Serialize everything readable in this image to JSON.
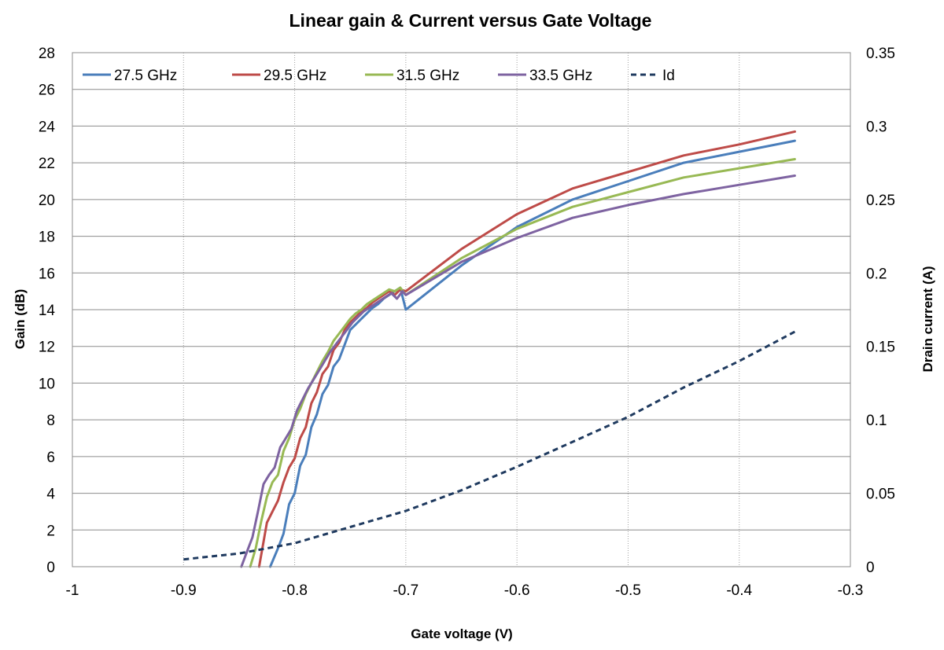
{
  "chart_data": {
    "type": "line",
    "title": "Linear gain & Current versus Gate Voltage",
    "xlabel": "Gate voltage (V)",
    "ylabel": "Gain (dB)",
    "y2label": "Drain current (A)",
    "xlim": [
      -1,
      -0.3
    ],
    "ylim": [
      0,
      28
    ],
    "y2lim": [
      0,
      0.35
    ],
    "x_ticks": [
      "-1",
      "-0.9",
      "-0.8",
      "-0.7",
      "-0.6",
      "-0.5",
      "-0.4",
      "-0.3"
    ],
    "y_ticks": [
      "0",
      "2",
      "4",
      "6",
      "8",
      "10",
      "12",
      "14",
      "16",
      "18",
      "20",
      "22",
      "24",
      "26",
      "28"
    ],
    "y2_ticks": [
      "0",
      "0.05",
      "0.1",
      "0.15",
      "0.2",
      "0.25",
      "0.3",
      "0.35"
    ],
    "grid": "horizontal solid, vertical dotted",
    "legend_position": "top-left",
    "series": [
      {
        "name": "27.5 GHz",
        "color": "#4a7ebb",
        "axis": "left",
        "dash": "solid",
        "x": [
          -0.822,
          -0.815,
          -0.81,
          -0.805,
          -0.8,
          -0.795,
          -0.79,
          -0.785,
          -0.78,
          -0.775,
          -0.77,
          -0.765,
          -0.76,
          -0.755,
          -0.75,
          -0.745,
          -0.74,
          -0.735,
          -0.73,
          -0.725,
          -0.72,
          -0.715,
          -0.71,
          -0.705,
          -0.7,
          -0.65,
          -0.6,
          -0.55,
          -0.5,
          -0.45,
          -0.4,
          -0.35
        ],
        "y": [
          0,
          1,
          1.8,
          3.4,
          4.0,
          5.5,
          6.1,
          7.6,
          8.3,
          9.4,
          9.9,
          10.9,
          11.3,
          12.1,
          12.9,
          13.2,
          13.5,
          13.8,
          14.1,
          14.3,
          14.6,
          14.8,
          15.0,
          15.2,
          14.0,
          16.4,
          18.5,
          20.0,
          21.0,
          22.0,
          22.6,
          23.2
        ]
      },
      {
        "name": "29.5 GHz",
        "color": "#be4b48",
        "axis": "left",
        "dash": "solid",
        "x": [
          -0.832,
          -0.825,
          -0.82,
          -0.815,
          -0.81,
          -0.805,
          -0.8,
          -0.795,
          -0.79,
          -0.785,
          -0.78,
          -0.775,
          -0.77,
          -0.765,
          -0.76,
          -0.755,
          -0.75,
          -0.745,
          -0.74,
          -0.735,
          -0.73,
          -0.725,
          -0.72,
          -0.715,
          -0.71,
          -0.705,
          -0.7,
          -0.65,
          -0.6,
          -0.55,
          -0.5,
          -0.45,
          -0.4,
          -0.35
        ],
        "y": [
          0,
          2.4,
          3.0,
          3.6,
          4.6,
          5.4,
          5.9,
          7.0,
          7.6,
          8.9,
          9.5,
          10.5,
          10.9,
          11.8,
          12.2,
          12.9,
          13.3,
          13.6,
          13.9,
          14.1,
          14.4,
          14.6,
          14.8,
          15.0,
          14.8,
          15.1,
          15.0,
          17.3,
          19.2,
          20.6,
          21.5,
          22.4,
          23.0,
          23.7
        ]
      },
      {
        "name": "31.5 GHz",
        "color": "#98b954",
        "axis": "left",
        "dash": "solid",
        "x": [
          -0.84,
          -0.835,
          -0.83,
          -0.825,
          -0.82,
          -0.815,
          -0.81,
          -0.805,
          -0.8,
          -0.795,
          -0.79,
          -0.785,
          -0.78,
          -0.775,
          -0.77,
          -0.765,
          -0.76,
          -0.755,
          -0.75,
          -0.745,
          -0.74,
          -0.735,
          -0.73,
          -0.725,
          -0.72,
          -0.715,
          -0.71,
          -0.705,
          -0.7,
          -0.65,
          -0.6,
          -0.55,
          -0.5,
          -0.45,
          -0.4,
          -0.35
        ],
        "y": [
          0,
          1.0,
          2.5,
          3.8,
          4.6,
          5.0,
          6.3,
          7.0,
          8.0,
          8.6,
          9.4,
          10.0,
          10.6,
          11.2,
          11.7,
          12.3,
          12.7,
          13.1,
          13.5,
          13.8,
          14.0,
          14.3,
          14.5,
          14.7,
          14.9,
          15.1,
          15.0,
          15.2,
          14.8,
          16.8,
          18.4,
          19.6,
          20.4,
          21.2,
          21.7,
          22.2
        ]
      },
      {
        "name": "33.5 GHz",
        "color": "#7e63a1",
        "axis": "left",
        "dash": "solid",
        "x": [
          -0.848,
          -0.843,
          -0.838,
          -0.833,
          -0.828,
          -0.823,
          -0.818,
          -0.813,
          -0.808,
          -0.803,
          -0.798,
          -0.793,
          -0.788,
          -0.783,
          -0.778,
          -0.773,
          -0.768,
          -0.763,
          -0.758,
          -0.753,
          -0.748,
          -0.743,
          -0.738,
          -0.733,
          -0.728,
          -0.723,
          -0.718,
          -0.713,
          -0.708,
          -0.703,
          -0.7,
          -0.65,
          -0.6,
          -0.55,
          -0.5,
          -0.45,
          -0.4,
          -0.35
        ],
        "y": [
          0,
          0.8,
          1.6,
          3.0,
          4.5,
          5.0,
          5.4,
          6.5,
          7.0,
          7.5,
          8.5,
          9.1,
          9.7,
          10.2,
          10.7,
          11.2,
          11.7,
          12.1,
          12.5,
          12.9,
          13.3,
          13.6,
          13.9,
          14.1,
          14.3,
          14.5,
          14.7,
          14.9,
          14.6,
          15.0,
          14.8,
          16.6,
          17.9,
          19.0,
          19.7,
          20.3,
          20.8,
          21.3
        ]
      },
      {
        "name": "Id",
        "color": "#1f3a5f",
        "axis": "right",
        "dash": "dashed",
        "x": [
          -0.9,
          -0.85,
          -0.8,
          -0.75,
          -0.7,
          -0.65,
          -0.6,
          -0.55,
          -0.5,
          -0.45,
          -0.4,
          -0.35
        ],
        "y": [
          0.005,
          0.009,
          0.016,
          0.027,
          0.038,
          0.052,
          0.068,
          0.085,
          0.102,
          0.122,
          0.14,
          0.16
        ]
      }
    ]
  }
}
